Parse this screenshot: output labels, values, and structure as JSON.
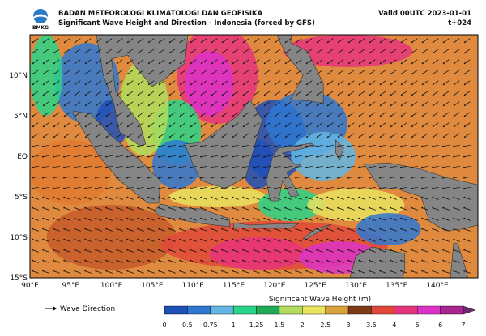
{
  "header": {
    "logo": "BMKG",
    "org": "BADAN METEOROLOGI KLIMATOLOGI DAN GEOFISIKA",
    "subtitle": "Significant Wave Height and Direction - Indonesia (forced by GFS)",
    "valid": "Valid 00UTC 2023-01-01",
    "step": "t+024"
  },
  "map": {
    "lat_labels": [
      "10°N",
      "5°N",
      "EQ",
      "5°S",
      "10°S",
      "15°S"
    ],
    "lon_labels": [
      "90°E",
      "95°E",
      "100°E",
      "105°E",
      "110°E",
      "115°E",
      "120°E",
      "125°E",
      "130°E",
      "135°E",
      "140°E"
    ]
  },
  "legend": {
    "arrow_label": "Wave Direction"
  },
  "colorbar": {
    "title": "Significant Wave Height (m)",
    "ticks": [
      "0",
      "0.5",
      "0.75",
      "1",
      "1.25",
      "1.5",
      "2",
      "2.5",
      "3",
      "3.5",
      "4",
      "5",
      "6",
      "7"
    ],
    "colors": [
      "#1e4fb8",
      "#2f78d2",
      "#62b6e4",
      "#2ad488",
      "#1faa55",
      "#b2dd5c",
      "#e9e35e",
      "#d9a33c",
      "#7e3a14",
      "#e2483a",
      "#e8347c",
      "#dc32c8",
      "#a8248e",
      "#6b2a6b"
    ]
  }
}
